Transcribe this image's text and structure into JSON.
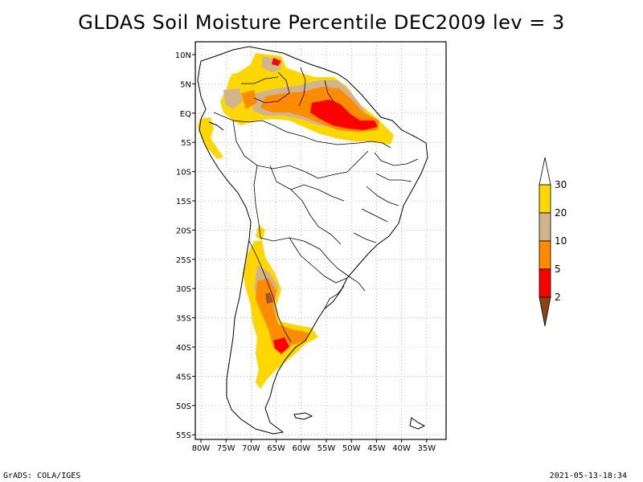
{
  "title": "GLDAS Soil Moisture Percentile DEC2009 lev = 3",
  "footer_left": "GrADS: COLA/IGES",
  "footer_right": "2021-05-13-18:34",
  "map": {
    "lat_labels": [
      "10N",
      "5N",
      "EQ",
      "5S",
      "10S",
      "15S",
      "20S",
      "25S",
      "30S",
      "35S",
      "40S",
      "45S",
      "50S",
      "55S"
    ],
    "lon_labels": [
      "80W",
      "75W",
      "70W",
      "65W",
      "60W",
      "55W",
      "50W",
      "45W",
      "40W",
      "35W"
    ]
  },
  "legend": {
    "labels": [
      "30",
      "20",
      "10",
      "5",
      "2"
    ],
    "colors": [
      "#ffffff",
      "#ffd700",
      "#d2b48c",
      "#ff8c00",
      "#ff0000",
      "#8b4513"
    ]
  },
  "colors": {
    "yellow": "#ffd700",
    "tan": "#d2b48c",
    "orange": "#ff8c00",
    "red": "#ff0000",
    "brown": "#a0522d"
  }
}
